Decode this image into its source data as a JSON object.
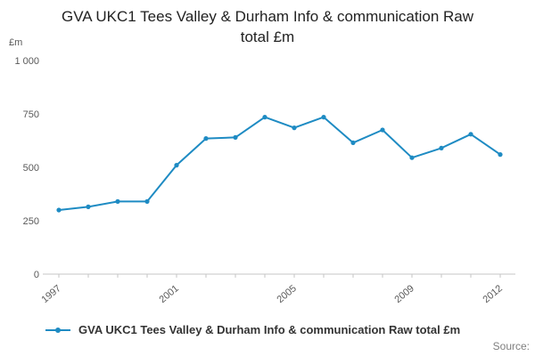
{
  "chart_data": {
    "type": "line",
    "title": "GVA UKC1 Tees Valley & Durham Info & communication Raw total £m",
    "ylabel": "£m",
    "x": [
      1997,
      1998,
      1999,
      2000,
      2001,
      2002,
      2003,
      2004,
      2005,
      2006,
      2007,
      2008,
      2009,
      2010,
      2011,
      2012
    ],
    "series": [
      {
        "name": "GVA UKC1 Tees Valley & Durham Info & communication Raw total £m",
        "values": [
          300,
          315,
          340,
          340,
          510,
          635,
          640,
          735,
          685,
          735,
          615,
          675,
          545,
          590,
          655,
          560
        ]
      }
    ],
    "ylim": [
      0,
      1000
    ],
    "yticks": [
      {
        "value": 0,
        "label": "0"
      },
      {
        "value": 250,
        "label": "250"
      },
      {
        "value": 500,
        "label": "500"
      },
      {
        "value": 750,
        "label": "750"
      },
      {
        "value": 1000,
        "label": "1 000"
      }
    ],
    "xticks": [
      1997,
      2001,
      2005,
      2009,
      2012
    ],
    "line_color": "#1e8bc3",
    "grid": false,
    "legend_position": "bottom-left"
  },
  "footer": {
    "source_label": "Source:"
  }
}
